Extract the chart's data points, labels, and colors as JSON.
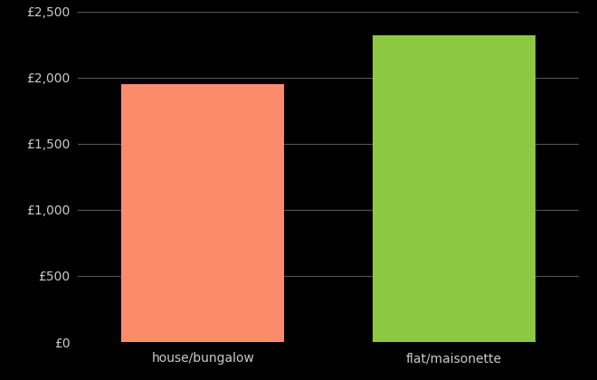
{
  "categories": [
    "house/bungalow",
    "flat/maisonette"
  ],
  "values": [
    1950,
    2320
  ],
  "bar_colors": [
    "#FA8C6C",
    "#8DC843"
  ],
  "background_color": "#000000",
  "text_color": "#cccccc",
  "grid_color": "#555555",
  "ylim": [
    0,
    2500
  ],
  "yticks": [
    0,
    500,
    1000,
    1500,
    2000,
    2500
  ],
  "bar_width": 0.65,
  "figsize": [
    6.6,
    4.2
  ],
  "dpi": 100
}
